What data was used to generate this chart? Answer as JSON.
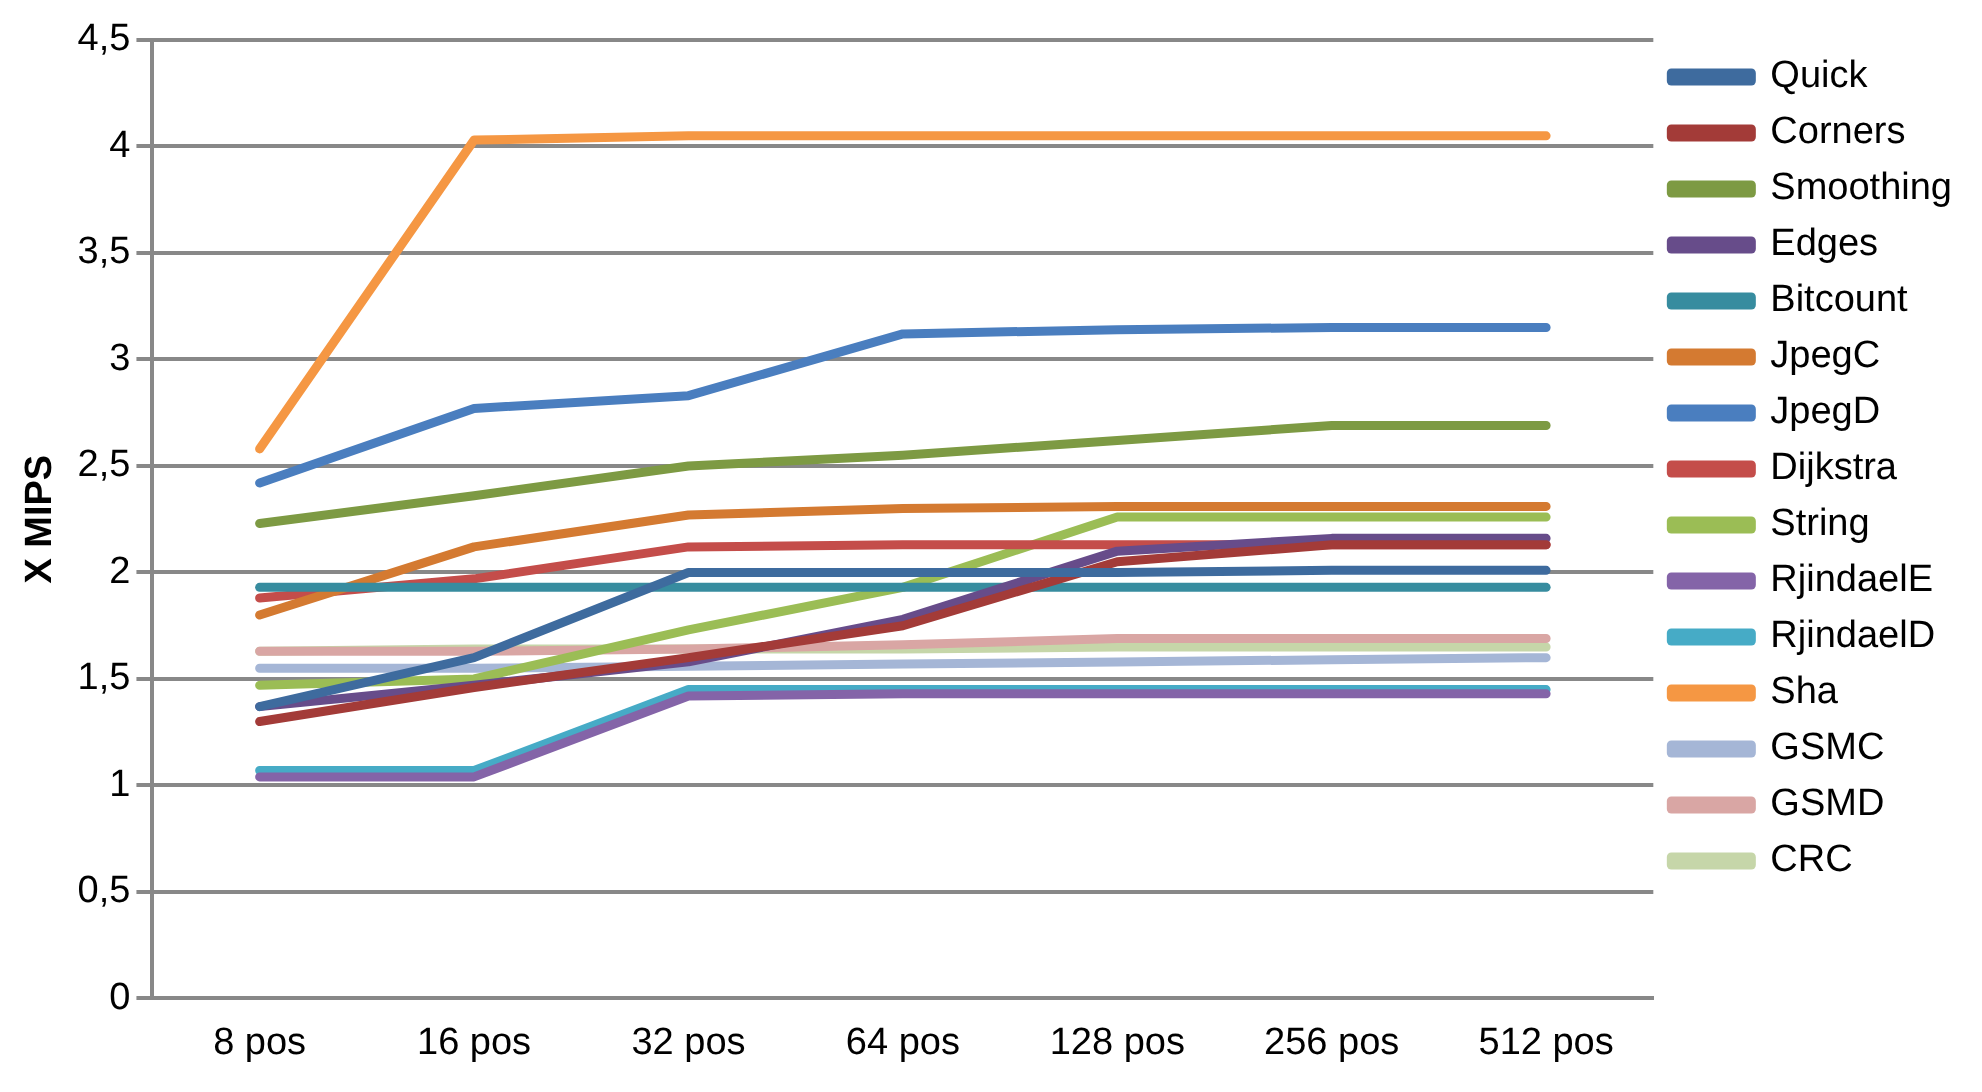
{
  "chart_data": {
    "type": "line",
    "ylabel": "X MIPS",
    "categories": [
      "8 pos",
      "16 pos",
      "32 pos",
      "64 pos",
      "128 pos",
      "256 pos",
      "512 pos"
    ],
    "ylim": [
      0,
      4.5
    ],
    "yticks": [
      0,
      {
        "value": 0.5,
        "label": "0,5"
      },
      1,
      {
        "value": 1.5,
        "label": "1,5"
      },
      2,
      {
        "value": 2.5,
        "label": "2,5"
      },
      3,
      {
        "value": 3.5,
        "label": "3,5"
      },
      4,
      {
        "value": 4.5,
        "label": "4,5"
      }
    ],
    "grid": "y",
    "legend": "right",
    "marker": "none",
    "series": [
      {
        "name": "Quick",
        "color": "#3e6b9e",
        "values": [
          1.37,
          1.6,
          2.0,
          2.0,
          2.0,
          2.01,
          2.01
        ]
      },
      {
        "name": "Corners",
        "color": "#a33b38",
        "values": [
          1.3,
          1.46,
          1.6,
          1.75,
          2.05,
          2.13,
          2.13
        ]
      },
      {
        "name": "Smoothing",
        "color": "#7d9a43",
        "values": [
          2.23,
          2.36,
          2.5,
          2.55,
          2.62,
          2.69,
          2.69
        ]
      },
      {
        "name": "Edges",
        "color": "#674c8a",
        "values": [
          1.37,
          1.47,
          1.58,
          1.78,
          2.1,
          2.16,
          2.16
        ]
      },
      {
        "name": "Bitcount",
        "color": "#378c9f",
        "values": [
          1.93,
          1.93,
          1.93,
          1.93,
          1.93,
          1.93,
          1.93
        ]
      },
      {
        "name": "JpegC",
        "color": "#d47a31",
        "values": [
          1.8,
          2.12,
          2.27,
          2.3,
          2.31,
          2.31,
          2.31
        ]
      },
      {
        "name": "JpegD",
        "color": "#4a7ebf",
        "values": [
          2.42,
          2.77,
          2.83,
          3.12,
          3.14,
          3.15,
          3.15
        ]
      },
      {
        "name": "Dijkstra",
        "color": "#c44d4a",
        "values": [
          1.88,
          1.97,
          2.12,
          2.13,
          2.13,
          2.13,
          2.13
        ]
      },
      {
        "name": "String",
        "color": "#9bbd55",
        "values": [
          1.47,
          1.5,
          1.73,
          1.93,
          2.26,
          2.26,
          2.26
        ]
      },
      {
        "name": "RjindaelE",
        "color": "#8464a8",
        "values": [
          1.04,
          1.04,
          1.42,
          1.43,
          1.43,
          1.43,
          1.43
        ]
      },
      {
        "name": "RjindaelD",
        "color": "#46abc6",
        "values": [
          1.07,
          1.07,
          1.45,
          1.45,
          1.45,
          1.45,
          1.45
        ]
      },
      {
        "name": "Sha",
        "color": "#f59743",
        "values": [
          2.58,
          4.03,
          4.05,
          4.05,
          4.05,
          4.05,
          4.05
        ]
      },
      {
        "name": "GSMC",
        "color": "#a5b6d6",
        "values": [
          1.55,
          1.55,
          1.56,
          1.57,
          1.58,
          1.59,
          1.6
        ]
      },
      {
        "name": "GSMD",
        "color": "#d9a6a4",
        "values": [
          1.63,
          1.63,
          1.64,
          1.66,
          1.69,
          1.69,
          1.69
        ]
      },
      {
        "name": "CRC",
        "color": "#c6d6a9",
        "values": [
          1.63,
          1.64,
          1.64,
          1.64,
          1.65,
          1.65,
          1.65
        ]
      }
    ]
  }
}
